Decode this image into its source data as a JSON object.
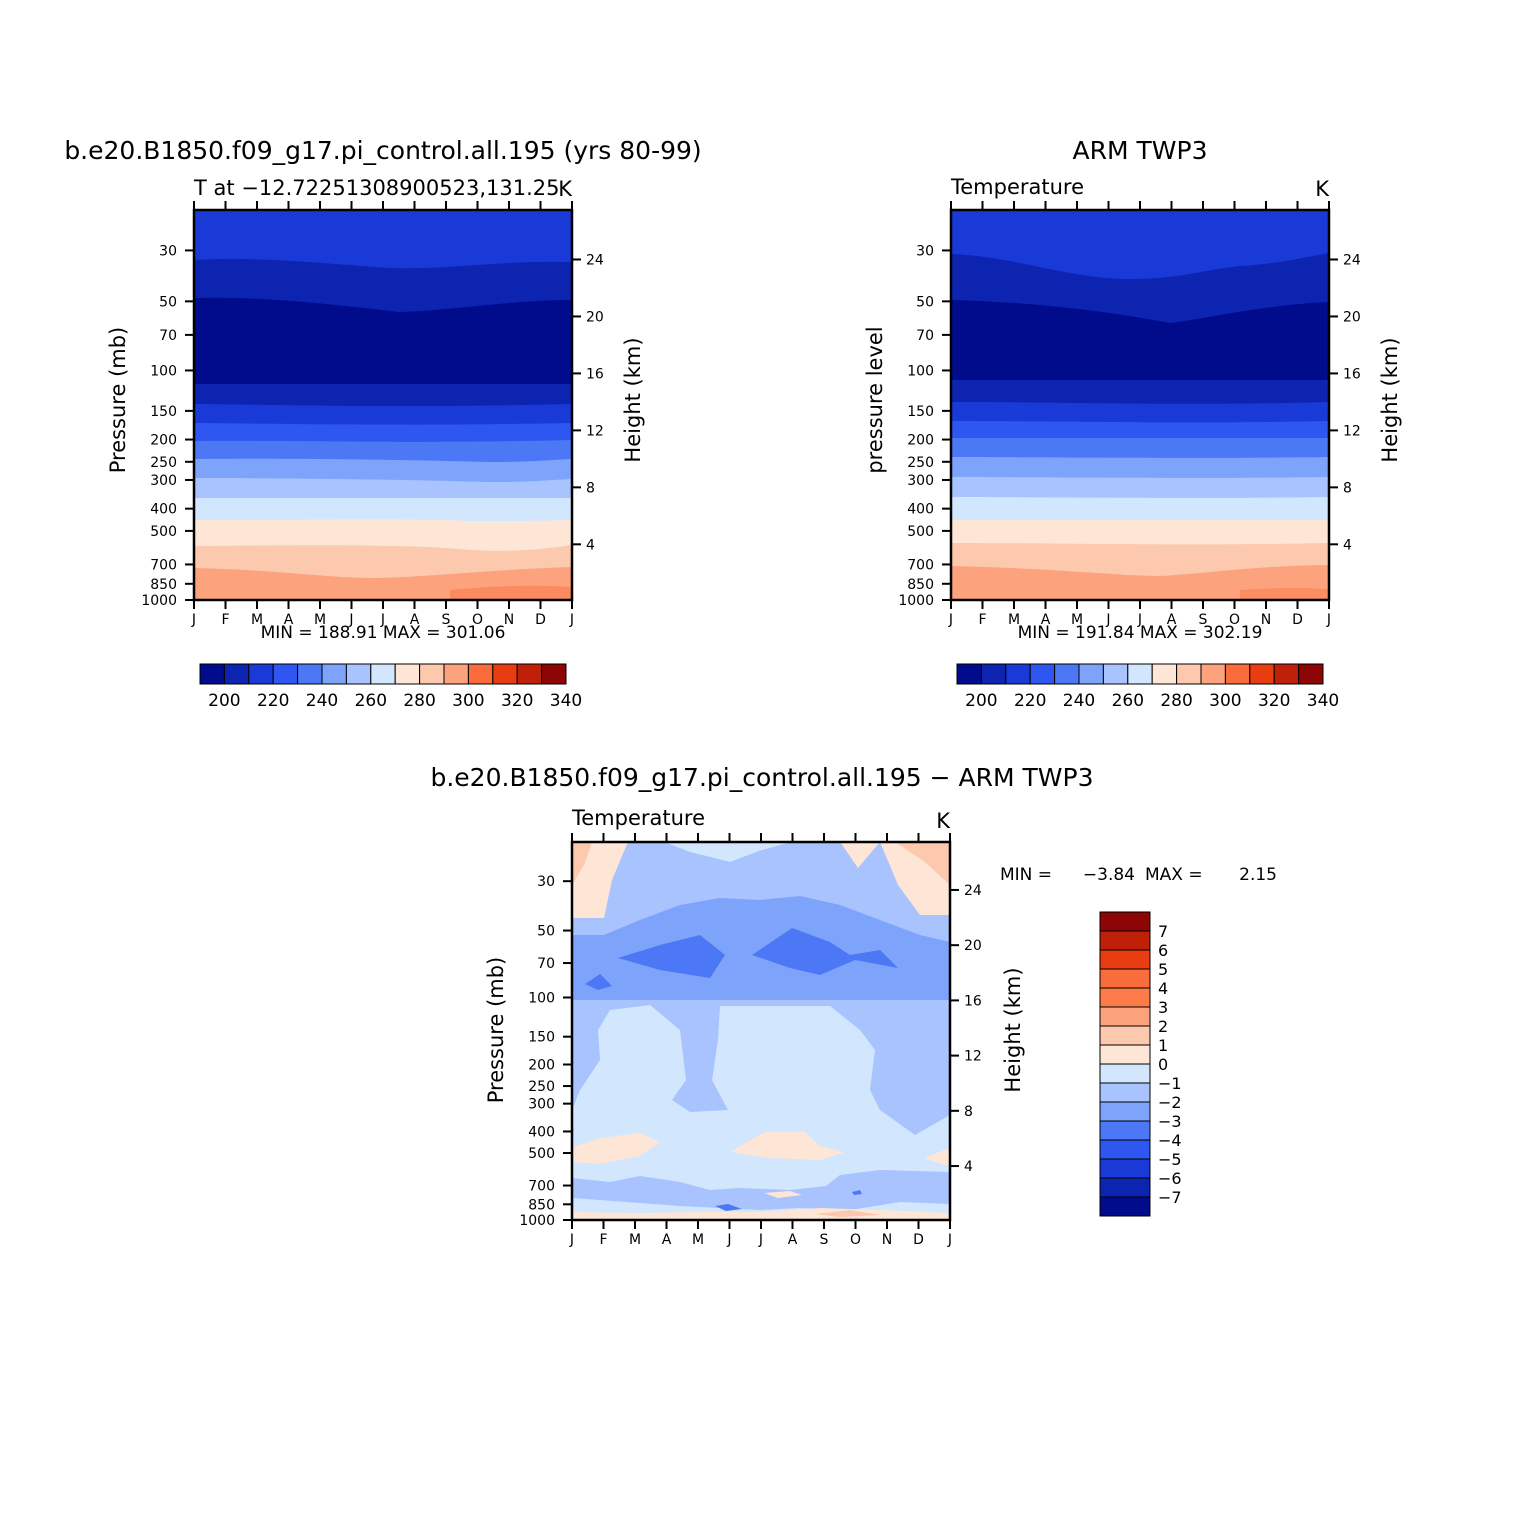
{
  "chart_data": [
    {
      "type": "heatmap",
      "title": "b.e20.B1850.f09_g17.pi_control.all.195 (yrs 80-99)",
      "subtitle_left": "T at −12.72251308900523,131.25",
      "units": "K",
      "ylabel_left": "Pressure (mb)",
      "ylabel_right": "Height (km)",
      "x_ticks": [
        "J",
        "F",
        "M",
        "A",
        "M",
        "J",
        "J",
        "A",
        "S",
        "O",
        "N",
        "D",
        "J"
      ],
      "y_ticks": [
        "30",
        "50",
        "70",
        "100",
        "150",
        "200",
        "250",
        "300",
        "400",
        "500",
        "700",
        "850",
        "1000"
      ],
      "y_ticks_right": [
        "24",
        "20",
        "16",
        "12",
        "8",
        "4"
      ],
      "stats": "MIN =  188.91 MAX =  301.06",
      "colorbar_labels": [
        "200",
        "220",
        "240",
        "260",
        "280",
        "300",
        "320",
        "340"
      ],
      "layers": [
        {
          "top": 20,
          "values": [
            232,
            232,
            232,
            232,
            232,
            232,
            232,
            232,
            232,
            232,
            232,
            232,
            232
          ]
        },
        {
          "top": 37,
          "values": [
            222,
            222,
            222,
            221,
            220,
            219,
            219,
            219,
            220,
            221,
            221,
            222,
            222
          ]
        },
        {
          "top": 56,
          "values": [
            210,
            210,
            210,
            209,
            208,
            207,
            207,
            207,
            208,
            209,
            209,
            210,
            210
          ]
        },
        {
          "top": 140,
          "values": [
            200,
            200,
            200,
            200,
            200,
            200,
            200,
            200,
            200,
            200,
            200,
            200,
            200
          ]
        },
        {
          "top": 175,
          "values": [
            214,
            214,
            214,
            214,
            214,
            214,
            214,
            214,
            214,
            214,
            214,
            214,
            214
          ]
        },
        {
          "top": 210,
          "values": [
            224,
            224,
            224,
            224,
            224,
            224,
            224,
            224,
            224,
            224,
            224,
            224,
            224
          ]
        },
        {
          "top": 240,
          "values": [
            234,
            234,
            234,
            234,
            234,
            234,
            234,
            234,
            234,
            234,
            234,
            234,
            234
          ]
        },
        {
          "top": 290,
          "values": [
            244,
            244,
            244,
            244,
            244,
            244,
            244,
            244,
            244,
            244,
            244,
            244,
            244
          ]
        },
        {
          "top": 370,
          "values": [
            254,
            254,
            254,
            254,
            254,
            254,
            254,
            254,
            254,
            254,
            254,
            254,
            254
          ]
        },
        {
          "top": 460,
          "values": [
            266,
            266,
            266,
            266,
            266,
            266,
            266,
            266,
            266,
            266,
            266,
            266,
            266
          ]
        },
        {
          "top": 560,
          "values": [
            275,
            275,
            275,
            275,
            275,
            275,
            275,
            275,
            275,
            275,
            275,
            275,
            275
          ]
        },
        {
          "top": 760,
          "values": [
            285,
            285,
            285,
            285,
            285,
            285,
            285,
            285,
            285,
            285,
            285,
            285,
            285
          ]
        },
        {
          "top": 940,
          "values": [
            294,
            294,
            294,
            294,
            294,
            294,
            294,
            294,
            294,
            294,
            294,
            294,
            294
          ]
        }
      ]
    },
    {
      "type": "heatmap",
      "title": "ARM TWP3",
      "subtitle_left": "Temperature",
      "units": "K",
      "ylabel_left": "pressure level",
      "ylabel_right": "Height (km)",
      "x_ticks": [
        "J",
        "F",
        "M",
        "A",
        "M",
        "J",
        "J",
        "A",
        "S",
        "O",
        "N",
        "D",
        "J"
      ],
      "y_ticks": [
        "30",
        "50",
        "70",
        "100",
        "150",
        "200",
        "250",
        "300",
        "400",
        "500",
        "700",
        "850",
        "1000"
      ],
      "y_ticks_right": [
        "24",
        "20",
        "16",
        "12",
        "8",
        "4"
      ],
      "stats": "MIN =  191.84 MAX =  302.19",
      "colorbar_labels": [
        "200",
        "220",
        "240",
        "260",
        "280",
        "300",
        "320",
        "340"
      ]
    },
    {
      "type": "heatmap",
      "title": "b.e20.B1850.f09_g17.pi_control.all.195 − ARM TWP3",
      "subtitle_left": "Temperature",
      "units": "K",
      "ylabel_left": "Pressure (mb)",
      "ylabel_right": "Height (km)",
      "x_ticks": [
        "J",
        "F",
        "M",
        "A",
        "M",
        "J",
        "J",
        "A",
        "S",
        "O",
        "N",
        "D",
        "J"
      ],
      "y_ticks": [
        "30",
        "50",
        "70",
        "100",
        "150",
        "200",
        "250",
        "300",
        "400",
        "500",
        "700",
        "850",
        "1000"
      ],
      "y_ticks_right": [
        "24",
        "20",
        "16",
        "12",
        "8",
        "4"
      ],
      "stats_min_label": "MIN =",
      "stats_min": "−3.84",
      "stats_max_label": "MAX =",
      "stats_max": "2.15",
      "colorbar_labels": [
        "7",
        "6",
        "5",
        "4",
        "3",
        "2",
        "1",
        "0",
        "−1",
        "−2",
        "−3",
        "−4",
        "−5",
        "−6",
        "−7"
      ]
    }
  ],
  "colors": {
    "abs_scale": [
      "#000c8c",
      "#0d24b0",
      "#1a3ad8",
      "#2e56f0",
      "#4d78f5",
      "#7ea3fb",
      "#a8c3fd",
      "#d2e6fe",
      "#fee6d6",
      "#fcc8ae",
      "#fca37e",
      "#fa6c3c",
      "#e83d10",
      "#bf2008",
      "#8e0505"
    ],
    "diff_scale": [
      "#8e0505",
      "#bf2008",
      "#e83d10",
      "#fa6c3c",
      "#fc7b48",
      "#fca37e",
      "#fcc8ae",
      "#fee6d6",
      "#d2e6fe",
      "#a8c3fd",
      "#7ea3fb",
      "#4d78f5",
      "#2e56f0",
      "#1a3ad8",
      "#0d24b0",
      "#000c8c"
    ]
  }
}
